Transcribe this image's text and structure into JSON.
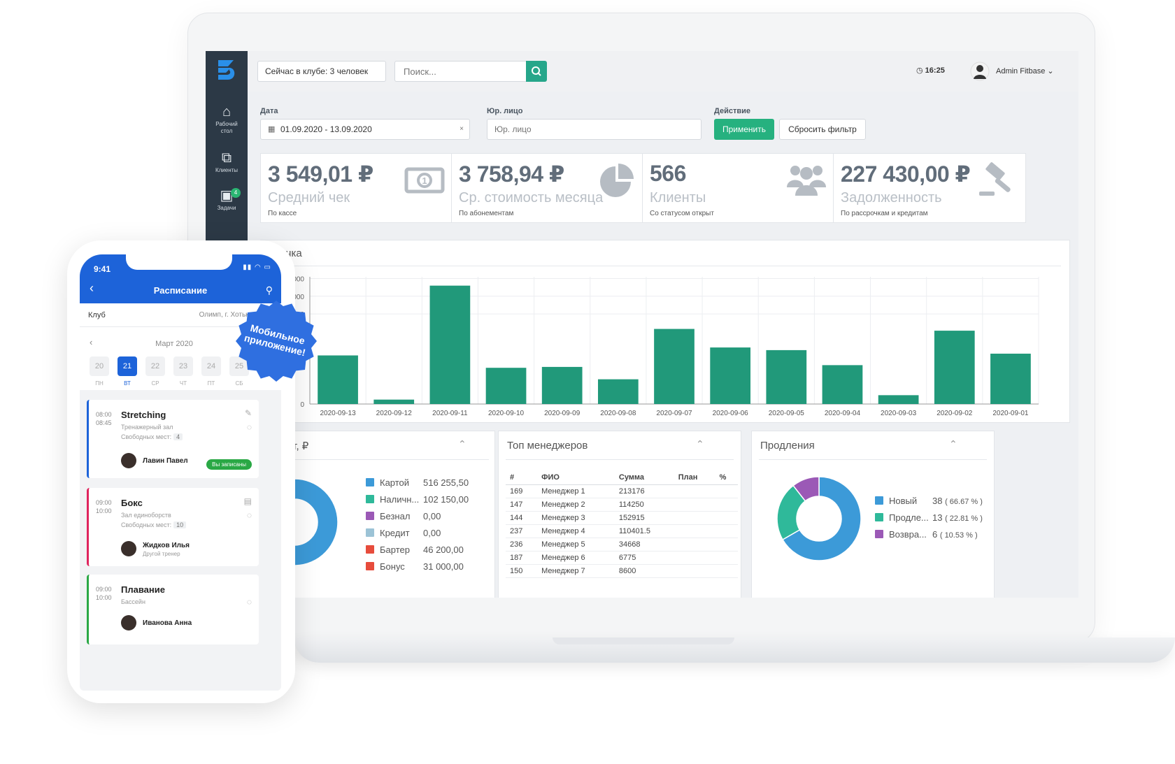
{
  "topbar": {
    "in_club": "Сейчас в клубе: 3 человек",
    "search_placeholder": "Поиск...",
    "clock": "16:25",
    "admin_name": "Admin Fitbase"
  },
  "sidebar": {
    "items": [
      {
        "label_line1": "Рабочий",
        "label_line2": "стол",
        "icon": "home-icon"
      },
      {
        "label_line1": "Клиенты",
        "label_line2": "",
        "icon": "clients-icon"
      },
      {
        "label_line1": "Задачи",
        "label_line2": "",
        "icon": "tasks-icon",
        "badge": "4"
      }
    ]
  },
  "filters": {
    "date_label": "Дата",
    "date_value": "01.09.2020 - 13.09.2020",
    "date_clear": "×",
    "legal_label": "Юр. лицо",
    "legal_placeholder": "Юр. лицо",
    "action_label": "Действие",
    "apply": "Применить",
    "reset": "Сбросить фильтр"
  },
  "stats": [
    {
      "value": "3 549,01 ₽",
      "title": "Средний чек",
      "sub": "По кассе",
      "icon": "money-icon"
    },
    {
      "value": "3 758,94 ₽",
      "title": "Ср. стоимость месяца",
      "sub": "По абонементам",
      "icon": "pie-icon"
    },
    {
      "value": "566",
      "title": "Клиенты",
      "sub": "Со статусом открыт",
      "icon": "users-icon"
    },
    {
      "value": "227 430,00 ₽",
      "title": "Задолженность",
      "sub": "По рассрочкам и кредитам",
      "icon": "gavel-icon"
    }
  ],
  "revenue": {
    "title_visible": "ручка",
    "bar_color": "#21997a"
  },
  "chart_data": {
    "type": "bar",
    "title": "ручка",
    "categories": [
      "2020-09-13",
      "2020-09-12",
      "2020-09-11",
      "2020-09-10",
      "2020-09-09",
      "2020-09-08",
      "2020-09-07",
      "2020-09-06",
      "2020-09-05",
      "2020-09-04",
      "2020-09-03",
      "2020-09-02",
      "2020-09-01"
    ],
    "values": [
      27500,
      2500,
      67000,
      20500,
      21000,
      14000,
      42500,
      32000,
      30500,
      22000,
      5000,
      41500,
      28500
    ],
    "ylim": [
      0,
      72000
    ],
    "ytick_labels": [
      "000",
      "000",
      "000",
      "0"
    ],
    "ytick_values": [
      71000,
      61000,
      51000,
      0
    ],
    "grid": true
  },
  "payments": {
    "title": "оплат, ₽",
    "items": [
      {
        "name": "Картой",
        "amount": "516 255,50",
        "color": "#3c9ad8"
      },
      {
        "name": "Наличн...",
        "amount": "102 150,00",
        "color": "#2fb99a"
      },
      {
        "name": "Безнал",
        "amount": "0,00",
        "color": "#9b59b6"
      },
      {
        "name": "Кредит",
        "amount": "0,00",
        "color": "#9cc3d6"
      },
      {
        "name": "Бартер",
        "amount": "46 200,00",
        "color": "#e74c3c"
      },
      {
        "name": "Бонус",
        "amount": "31 000,00",
        "color": "#e74c3c"
      }
    ],
    "donut": [
      {
        "value": 516255.5,
        "color": "#3c9ad8"
      },
      {
        "value": 102150,
        "color": "#2fb99a"
      },
      {
        "value": 46200,
        "color": "#e74c3c"
      },
      {
        "value": 31000,
        "color": "#3c9ad8"
      }
    ]
  },
  "managers": {
    "title": "Топ менеджеров",
    "headers": [
      "#",
      "ФИО",
      "Сумма",
      "План",
      "%"
    ],
    "rows": [
      [
        "169",
        "Менеджер 1",
        "213176"
      ],
      [
        "147",
        "Менеджер 2",
        "114250"
      ],
      [
        "144",
        "Менеджер 3",
        "152915"
      ],
      [
        "237",
        "Менеджер 4",
        "110401.5"
      ],
      [
        "236",
        "Менеджер 5",
        "34668"
      ],
      [
        "187",
        "Менеджер 6",
        "6775"
      ],
      [
        "150",
        "Менеджер 7",
        "8600"
      ]
    ]
  },
  "renewals": {
    "title": "Продления",
    "items": [
      {
        "name": "Новый",
        "count": "38",
        "pct": "( 66.67 % )",
        "color": "#3c9ad8"
      },
      {
        "name": "Продле...",
        "count": "13",
        "pct": "( 22.81 % )",
        "color": "#2fb99a"
      },
      {
        "name": "Возвра...",
        "count": "6",
        "pct": "( 10.53 % )",
        "color": "#9b59b6"
      }
    ],
    "donut": [
      {
        "value": 66.67,
        "color": "#3c9ad8"
      },
      {
        "value": 22.81,
        "color": "#2fb99a"
      },
      {
        "value": 10.53,
        "color": "#9b59b6"
      }
    ]
  },
  "phone": {
    "time": "9:41",
    "title": "Расписание",
    "club_label": "Клуб",
    "club_value": "Олимп, г. Хотьково",
    "month": "Март 2020",
    "days": [
      {
        "num": "20",
        "wd": "ПН"
      },
      {
        "num": "21",
        "wd": "ВТ",
        "selected": true
      },
      {
        "num": "22",
        "wd": "СР"
      },
      {
        "num": "23",
        "wd": "ЧТ"
      },
      {
        "num": "24",
        "wd": "ПТ"
      },
      {
        "num": "25",
        "wd": "СБ"
      }
    ],
    "events": [
      {
        "start": "08:00",
        "end": "08:45",
        "name": "Stretching",
        "room": "Тренажерный зал",
        "free_label": "Свободных мест:",
        "free": "4",
        "trainer": "Лавин Павел",
        "trainer_sub": "",
        "status": "Вы записаны",
        "color": "#1d63d9"
      },
      {
        "start": "09:00",
        "end": "10:00",
        "name": "Бокс",
        "room": "Зал единоборств",
        "free_label": "Свободных мест:",
        "free": "10",
        "trainer": "Жидков Илья",
        "trainer_sub": "Другой тренер",
        "status": "",
        "color": "#e0245e"
      },
      {
        "start": "09:00",
        "end": "10:00",
        "name": "Плавание",
        "room": "Бассейн",
        "free_label": "",
        "free": "",
        "trainer": "Иванова Анна",
        "trainer_sub": "",
        "status": "",
        "color": "#2aa845"
      }
    ]
  },
  "promo_badge": {
    "line1": "Мобильное",
    "line2": "приложение!",
    "color": "#2f6fe0"
  }
}
